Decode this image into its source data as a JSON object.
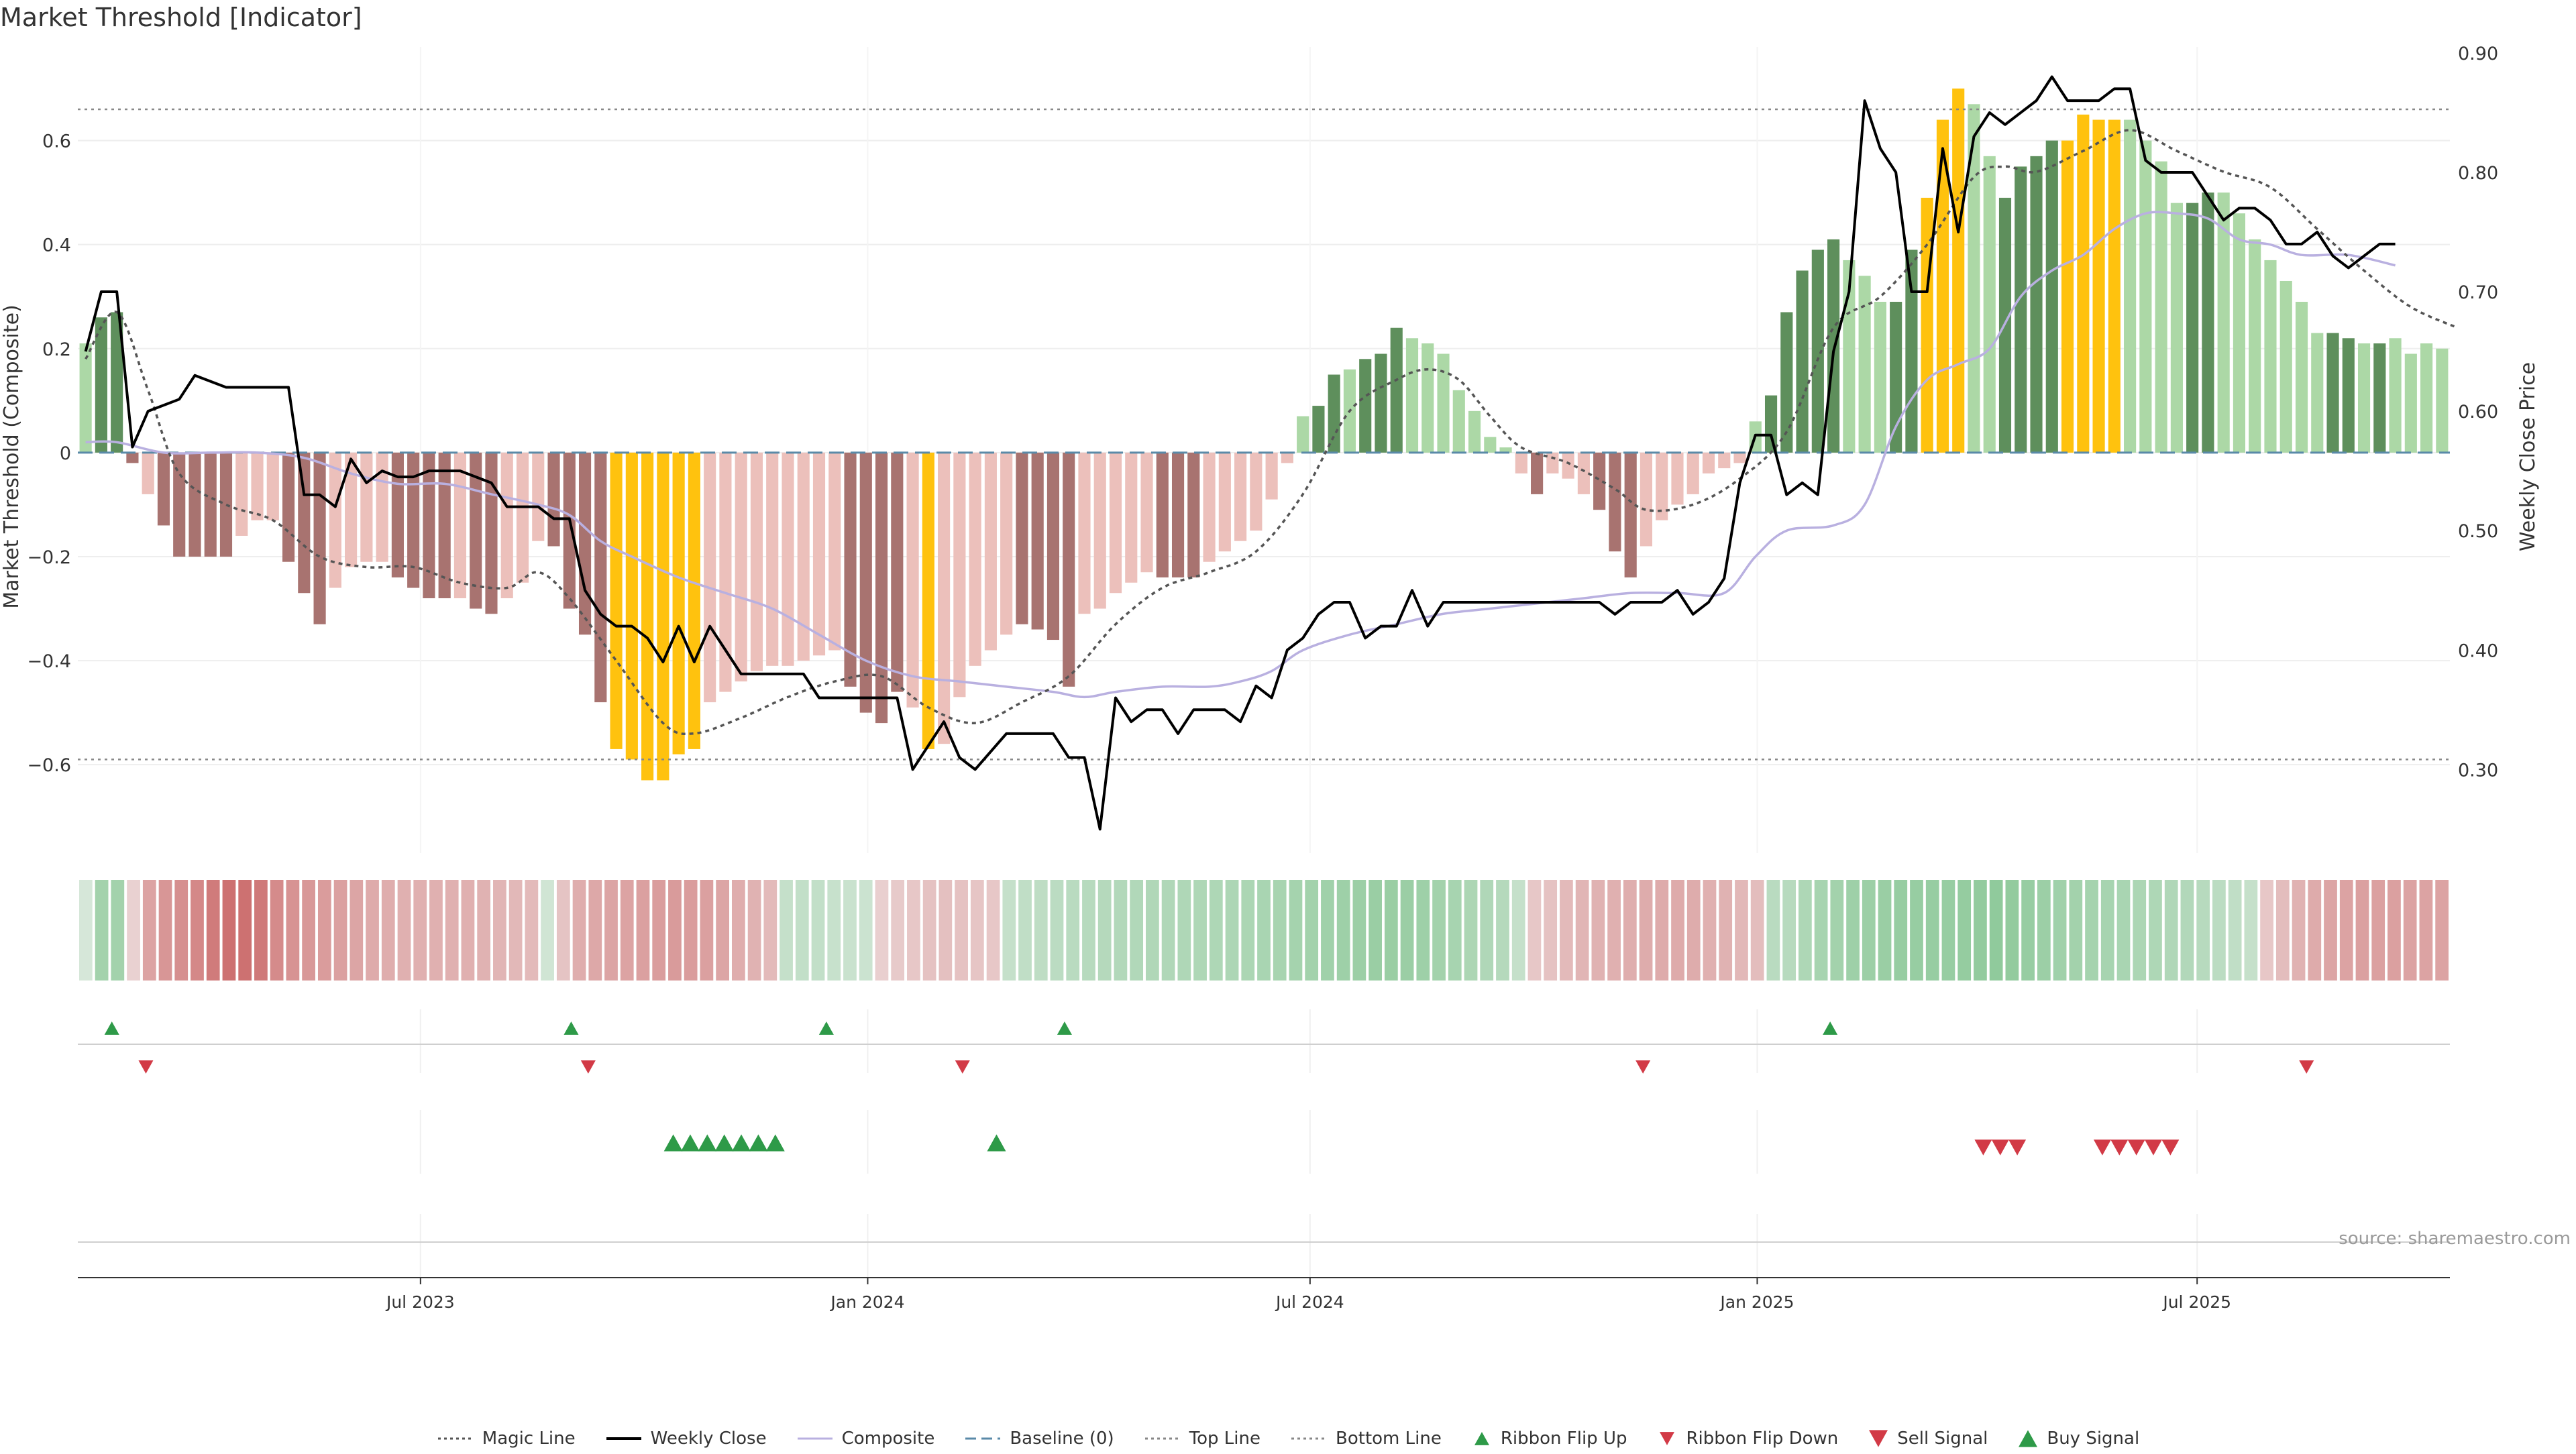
{
  "title": "Market Threshold [Indicator]",
  "source": "source: sharemaestro.com",
  "colors": {
    "bar_pos_strong": "#5e8f5c",
    "bar_pos_light": "#acd8a6",
    "bar_neg_strong": "#a87370",
    "bar_neg_light": "#ecc0bb",
    "bar_extreme": "#ffc20e",
    "magic": "#555555",
    "close": "#000000",
    "composite": "#b9b0e0",
    "baseline": "#5a8aa8",
    "guide": "#888888",
    "up_marker": "#2e9a48",
    "down_marker": "#d23a46"
  },
  "chart_data": {
    "type": "bar",
    "title": "Market Threshold [Indicator]",
    "ylabel": "Market Threshold (Composite)",
    "y2label": "Weekly Close Price",
    "ylim": [
      -0.77,
      0.78
    ],
    "y2lim": [
      0.23,
      0.905
    ],
    "yticks": [
      0.6,
      0.4,
      0.2,
      0,
      -0.2,
      -0.4,
      -0.6
    ],
    "y2ticks": [
      0.9,
      0.8,
      0.7,
      0.6,
      0.5,
      0.4,
      0.3
    ],
    "ytick_labels": [
      "0.6",
      "0.4",
      "0.2",
      "0",
      "−0.2",
      "−0.4",
      "−0.6"
    ],
    "y2tick_labels": [
      "0.90",
      "0.80",
      "0.70",
      "0.60",
      "0.50",
      "0.40",
      "0.30"
    ],
    "top_line": 0.66,
    "bottom_line": -0.59,
    "x_start": "2023-02-10",
    "x_end": "2025-10-13",
    "xticks": [
      {
        "date": "2023-07-01",
        "label": "Jul 2023"
      },
      {
        "date": "2024-01-01",
        "label": "Jan 2024"
      },
      {
        "date": "2024-07-01",
        "label": "Jul 2024"
      },
      {
        "date": "2025-01-01",
        "label": "Jan 2025"
      },
      {
        "date": "2025-07-01",
        "label": "Jul 2025"
      }
    ],
    "composite_bars": [
      0.21,
      0.26,
      0.27,
      -0.02,
      -0.08,
      -0.14,
      -0.2,
      -0.2,
      -0.2,
      -0.2,
      -0.16,
      -0.13,
      -0.13,
      -0.21,
      -0.27,
      -0.33,
      -0.26,
      -0.22,
      -0.21,
      -0.21,
      -0.24,
      -0.26,
      -0.28,
      -0.28,
      -0.28,
      -0.3,
      -0.31,
      -0.28,
      -0.25,
      -0.17,
      -0.18,
      -0.3,
      -0.35,
      -0.48,
      -0.57,
      -0.59,
      -0.63,
      -0.63,
      -0.58,
      -0.57,
      -0.48,
      -0.46,
      -0.44,
      -0.42,
      -0.41,
      -0.41,
      -0.4,
      -0.39,
      -0.38,
      -0.45,
      -0.5,
      -0.52,
      -0.46,
      -0.49,
      -0.57,
      -0.56,
      -0.47,
      -0.41,
      -0.38,
      -0.35,
      -0.33,
      -0.34,
      -0.36,
      -0.45,
      -0.31,
      -0.3,
      -0.27,
      -0.25,
      -0.23,
      -0.24,
      -0.24,
      -0.24,
      -0.21,
      -0.19,
      -0.17,
      -0.15,
      -0.09,
      -0.02,
      0.07,
      0.09,
      0.15,
      0.16,
      0.18,
      0.19,
      0.24,
      0.22,
      0.21,
      0.19,
      0.12,
      0.08,
      0.03,
      0.01,
      -0.04,
      -0.08,
      -0.04,
      -0.05,
      -0.08,
      -0.11,
      -0.19,
      -0.24,
      -0.18,
      -0.13,
      -0.1,
      -0.08,
      -0.04,
      -0.03,
      -0.02,
      0.06,
      0.11,
      0.27,
      0.35,
      0.39,
      0.41,
      0.37,
      0.34,
      0.29,
      0.29,
      0.39,
      0.49,
      0.64,
      0.7,
      0.67,
      0.57,
      0.49,
      0.55,
      0.57,
      0.6,
      0.6,
      0.65,
      0.64,
      0.64,
      0.64,
      0.6,
      0.56,
      0.48,
      0.48,
      0.5,
      0.5,
      0.46,
      0.41,
      0.37,
      0.33,
      0.29,
      0.23,
      0.23,
      0.22,
      0.21,
      0.21,
      0.22,
      0.19,
      0.21,
      0.2
    ],
    "bar_classes": [
      "L",
      "S",
      "S",
      "S",
      "N",
      "S",
      "S",
      "S",
      "S",
      "S",
      "N",
      "N",
      "N",
      "S",
      "S",
      "S",
      "N",
      "N",
      "N",
      "N",
      "S",
      "S",
      "S",
      "S",
      "N",
      "S",
      "S",
      "N",
      "N",
      "N",
      "S",
      "S",
      "S",
      "S",
      "E",
      "E",
      "E",
      "E",
      "E",
      "E",
      "N",
      "N",
      "N",
      "N",
      "N",
      "N",
      "N",
      "N",
      "N",
      "S",
      "S",
      "S",
      "S",
      "N",
      "E",
      "N",
      "N",
      "N",
      "N",
      "N",
      "S",
      "S",
      "S",
      "S",
      "N",
      "N",
      "N",
      "N",
      "N",
      "S",
      "S",
      "S",
      "N",
      "N",
      "N",
      "N",
      "N",
      "N",
      "L",
      "S",
      "S",
      "L",
      "S",
      "S",
      "S",
      "L",
      "L",
      "L",
      "L",
      "L",
      "L",
      "L",
      "N",
      "S",
      "N",
      "N",
      "N",
      "S",
      "S",
      "S",
      "N",
      "N",
      "N",
      "N",
      "N",
      "N",
      "N",
      "L",
      "S",
      "S",
      "S",
      "S",
      "S",
      "L",
      "L",
      "L",
      "S",
      "S",
      "E",
      "E",
      "E",
      "L",
      "L",
      "S",
      "S",
      "S",
      "S",
      "E",
      "E",
      "E",
      "E",
      "L",
      "L",
      "L",
      "L",
      "S",
      "S",
      "L",
      "L",
      "L",
      "L",
      "L",
      "L",
      "L",
      "S",
      "S",
      "L",
      "S",
      "L"
    ],
    "magic_line": [
      [
        0,
        0.18
      ],
      [
        2,
        0.27
      ],
      [
        4,
        0.12
      ],
      [
        6,
        -0.04
      ],
      [
        9,
        -0.1
      ],
      [
        12,
        -0.13
      ],
      [
        15,
        -0.2
      ],
      [
        18,
        -0.22
      ],
      [
        21,
        -0.22
      ],
      [
        24,
        -0.25
      ],
      [
        27,
        -0.26
      ],
      [
        29,
        -0.23
      ],
      [
        31,
        -0.28
      ],
      [
        34,
        -0.4
      ],
      [
        37,
        -0.52
      ],
      [
        39,
        -0.54
      ],
      [
        42,
        -0.51
      ],
      [
        45,
        -0.47
      ],
      [
        48,
        -0.44
      ],
      [
        51,
        -0.43
      ],
      [
        54,
        -0.49
      ],
      [
        57,
        -0.52
      ],
      [
        60,
        -0.48
      ],
      [
        63,
        -0.43
      ],
      [
        66,
        -0.33
      ],
      [
        69,
        -0.26
      ],
      [
        72,
        -0.23
      ],
      [
        75,
        -0.19
      ],
      [
        78,
        -0.08
      ],
      [
        81,
        0.08
      ],
      [
        84,
        0.14
      ],
      [
        86,
        0.16
      ],
      [
        88,
        0.14
      ],
      [
        90,
        0.07
      ],
      [
        92,
        0.01
      ],
      [
        95,
        -0.02
      ],
      [
        98,
        -0.07
      ],
      [
        100,
        -0.11
      ],
      [
        103,
        -0.1
      ],
      [
        106,
        -0.05
      ],
      [
        109,
        0.04
      ],
      [
        112,
        0.24
      ],
      [
        115,
        0.3
      ],
      [
        118,
        0.4
      ],
      [
        121,
        0.53
      ],
      [
        123,
        0.55
      ],
      [
        125,
        0.54
      ],
      [
        128,
        0.58
      ],
      [
        131,
        0.62
      ],
      [
        134,
        0.58
      ],
      [
        137,
        0.54
      ],
      [
        140,
        0.51
      ],
      [
        143,
        0.43
      ],
      [
        146,
        0.35
      ],
      [
        149,
        0.28
      ],
      [
        152,
        0.24
      ]
    ],
    "weekly_close": [
      [
        0,
        0.65
      ],
      [
        1,
        0.7
      ],
      [
        2,
        0.7
      ],
      [
        3,
        0.57
      ],
      [
        4,
        0.6
      ],
      [
        6,
        0.61
      ],
      [
        7,
        0.63
      ],
      [
        9,
        0.62
      ],
      [
        13,
        0.62
      ],
      [
        14,
        0.53
      ],
      [
        15,
        0.53
      ],
      [
        16,
        0.52
      ],
      [
        17,
        0.56
      ],
      [
        18,
        0.54
      ],
      [
        19,
        0.55
      ],
      [
        20,
        0.545
      ],
      [
        21,
        0.545
      ],
      [
        22,
        0.55
      ],
      [
        24,
        0.55
      ],
      [
        26,
        0.54
      ],
      [
        27,
        0.52
      ],
      [
        29,
        0.52
      ],
      [
        30,
        0.51
      ],
      [
        31,
        0.51
      ],
      [
        32,
        0.45
      ],
      [
        33,
        0.43
      ],
      [
        34,
        0.42
      ],
      [
        35,
        0.42
      ],
      [
        36,
        0.41
      ],
      [
        37,
        0.39
      ],
      [
        38,
        0.42
      ],
      [
        39,
        0.39
      ],
      [
        40,
        0.42
      ],
      [
        41,
        0.4
      ],
      [
        42,
        0.38
      ],
      [
        43,
        0.38
      ],
      [
        46,
        0.38
      ],
      [
        47,
        0.36
      ],
      [
        52,
        0.36
      ],
      [
        53,
        0.3
      ],
      [
        55,
        0.34
      ],
      [
        56,
        0.31
      ],
      [
        57,
        0.3
      ],
      [
        59,
        0.33
      ],
      [
        62,
        0.33
      ],
      [
        63,
        0.31
      ],
      [
        64,
        0.31
      ],
      [
        65,
        0.25
      ],
      [
        66,
        0.36
      ],
      [
        67,
        0.34
      ],
      [
        68,
        0.35
      ],
      [
        69,
        0.35
      ],
      [
        70,
        0.33
      ],
      [
        71,
        0.35
      ],
      [
        73,
        0.35
      ],
      [
        74,
        0.34
      ],
      [
        75,
        0.37
      ],
      [
        76,
        0.36
      ],
      [
        77,
        0.4
      ],
      [
        78,
        0.41
      ],
      [
        79,
        0.43
      ],
      [
        80,
        0.44
      ],
      [
        81,
        0.44
      ],
      [
        82,
        0.41
      ],
      [
        83,
        0.42
      ],
      [
        84,
        0.42
      ],
      [
        85,
        0.45
      ],
      [
        86,
        0.42
      ],
      [
        87,
        0.44
      ],
      [
        97,
        0.44
      ],
      [
        98,
        0.43
      ],
      [
        99,
        0.44
      ],
      [
        101,
        0.44
      ],
      [
        102,
        0.45
      ],
      [
        103,
        0.43
      ],
      [
        104,
        0.44
      ],
      [
        105,
        0.46
      ],
      [
        106,
        0.54
      ],
      [
        107,
        0.58
      ],
      [
        108,
        0.58
      ],
      [
        109,
        0.53
      ],
      [
        110,
        0.54
      ],
      [
        111,
        0.53
      ],
      [
        112,
        0.65
      ],
      [
        113,
        0.7
      ],
      [
        114,
        0.86
      ],
      [
        115,
        0.82
      ],
      [
        116,
        0.8
      ],
      [
        117,
        0.7
      ],
      [
        118,
        0.7
      ],
      [
        119,
        0.82
      ],
      [
        120,
        0.75
      ],
      [
        121,
        0.83
      ],
      [
        122,
        0.85
      ],
      [
        123,
        0.84
      ],
      [
        124,
        0.85
      ],
      [
        125,
        0.86
      ],
      [
        126,
        0.88
      ],
      [
        127,
        0.86
      ],
      [
        129,
        0.86
      ],
      [
        130,
        0.87
      ],
      [
        131,
        0.87
      ],
      [
        132,
        0.81
      ],
      [
        133,
        0.8
      ],
      [
        135,
        0.8
      ],
      [
        136,
        0.78
      ],
      [
        137,
        0.76
      ],
      [
        138,
        0.77
      ],
      [
        139,
        0.77
      ],
      [
        140,
        0.76
      ],
      [
        141,
        0.74
      ],
      [
        142,
        0.74
      ],
      [
        143,
        0.75
      ],
      [
        144,
        0.73
      ],
      [
        145,
        0.72
      ],
      [
        146,
        0.73
      ],
      [
        147,
        0.74
      ],
      [
        148,
        0.74
      ]
    ],
    "composite_line": [
      [
        0,
        0.02
      ],
      [
        2,
        0.02
      ],
      [
        5,
        0.0
      ],
      [
        8,
        0.0
      ],
      [
        11,
        0.0
      ],
      [
        14,
        -0.01
      ],
      [
        17,
        -0.04
      ],
      [
        20,
        -0.06
      ],
      [
        23,
        -0.06
      ],
      [
        26,
        -0.08
      ],
      [
        29,
        -0.1
      ],
      [
        31,
        -0.12
      ],
      [
        33,
        -0.17
      ],
      [
        35,
        -0.2
      ],
      [
        38,
        -0.24
      ],
      [
        41,
        -0.27
      ],
      [
        44,
        -0.3
      ],
      [
        47,
        -0.35
      ],
      [
        50,
        -0.4
      ],
      [
        53,
        -0.43
      ],
      [
        56,
        -0.44
      ],
      [
        59,
        -0.45
      ],
      [
        62,
        -0.46
      ],
      [
        64,
        -0.47
      ],
      [
        66,
        -0.46
      ],
      [
        69,
        -0.45
      ],
      [
        72,
        -0.45
      ],
      [
        74,
        -0.44
      ],
      [
        76,
        -0.42
      ],
      [
        78,
        -0.38
      ],
      [
        81,
        -0.35
      ],
      [
        84,
        -0.33
      ],
      [
        87,
        -0.31
      ],
      [
        90,
        -0.3
      ],
      [
        93,
        -0.29
      ],
      [
        96,
        -0.28
      ],
      [
        99,
        -0.27
      ],
      [
        102,
        -0.27
      ],
      [
        105,
        -0.27
      ],
      [
        107,
        -0.2
      ],
      [
        109,
        -0.15
      ],
      [
        112,
        -0.14
      ],
      [
        114,
        -0.1
      ],
      [
        116,
        0.05
      ],
      [
        118,
        0.14
      ],
      [
        120,
        0.17
      ],
      [
        122,
        0.2
      ],
      [
        124,
        0.3
      ],
      [
        126,
        0.35
      ],
      [
        128,
        0.38
      ],
      [
        130,
        0.43
      ],
      [
        132,
        0.46
      ],
      [
        134,
        0.46
      ],
      [
        136,
        0.45
      ],
      [
        138,
        0.41
      ],
      [
        140,
        0.4
      ],
      [
        142,
        0.38
      ],
      [
        145,
        0.38
      ],
      [
        148,
        0.36
      ]
    ],
    "ribbon_values": [
      0.05,
      0.5,
      0.5,
      -0.05,
      -0.4,
      -0.5,
      -0.55,
      -0.6,
      -0.7,
      -0.78,
      -0.78,
      -0.72,
      -0.58,
      -0.52,
      -0.48,
      -0.45,
      -0.42,
      -0.38,
      -0.34,
      -0.32,
      -0.3,
      -0.3,
      -0.3,
      -0.3,
      -0.3,
      -0.28,
      -0.26,
      -0.24,
      -0.22,
      0.1,
      -0.15,
      -0.32,
      -0.36,
      -0.38,
      -0.4,
      -0.42,
      -0.44,
      -0.46,
      -0.44,
      -0.42,
      -0.38,
      -0.32,
      -0.28,
      -0.22,
      0.2,
      0.22,
      0.22,
      0.18,
      0.16,
      0.14,
      -0.06,
      -0.1,
      -0.12,
      -0.16,
      -0.18,
      -0.16,
      -0.14,
      -0.12,
      0.2,
      0.24,
      0.26,
      0.28,
      0.3,
      0.32,
      0.34,
      0.36,
      0.37,
      0.38,
      0.38,
      0.39,
      0.4,
      0.4,
      0.41,
      0.42,
      0.44,
      0.46,
      0.48,
      0.5,
      0.52,
      0.54,
      0.56,
      0.58,
      0.58,
      0.57,
      0.54,
      0.5,
      0.46,
      0.42,
      0.38,
      0.34,
      0.2,
      -0.12,
      -0.16,
      -0.22,
      -0.26,
      -0.28,
      -0.3,
      -0.32,
      -0.33,
      -0.34,
      -0.34,
      -0.33,
      -0.3,
      -0.28,
      -0.24,
      -0.2,
      0.3,
      0.32,
      0.4,
      0.46,
      0.5,
      0.54,
      0.56,
      0.58,
      0.6,
      0.6,
      0.6,
      0.6,
      0.62,
      0.64,
      0.66,
      0.64,
      0.6,
      0.56,
      0.52,
      0.5,
      0.48,
      0.46,
      0.44,
      0.42,
      0.4,
      0.38,
      0.36,
      0.32,
      0.28,
      0.24,
      0.2,
      -0.12,
      -0.2,
      -0.28,
      -0.34,
      -0.38,
      -0.4,
      -0.42,
      -0.42,
      -0.42,
      -0.4,
      -0.4,
      -0.4
    ],
    "ribbon_flip_up": [
      "2023-02-24",
      "2023-09-01",
      "2023-12-15",
      "2024-03-22",
      "2025-01-31"
    ],
    "ribbon_flip_down": [
      "2023-03-10",
      "2023-09-08",
      "2024-02-09",
      "2024-11-15",
      "2025-08-15"
    ],
    "buy_signals": [
      "2023-10-13",
      "2023-10-20",
      "2023-10-27",
      "2023-11-03",
      "2023-11-10",
      "2023-11-17",
      "2023-11-24",
      "2024-02-23"
    ],
    "sell_signals": [
      "2025-04-04",
      "2025-04-11",
      "2025-04-18",
      "2025-05-23",
      "2025-05-30",
      "2025-06-06",
      "2025-06-13",
      "2025-06-20"
    ]
  },
  "legend": [
    {
      "key": "magic",
      "label": "Magic Line",
      "icon": "dotted-line-icon"
    },
    {
      "key": "close",
      "label": "Weekly Close",
      "icon": "solid-line-icon"
    },
    {
      "key": "composite",
      "label": "Composite",
      "icon": "solid-line-icon"
    },
    {
      "key": "baseline",
      "label": "Baseline (0)",
      "icon": "dashed-line-icon"
    },
    {
      "key": "top",
      "label": "Top Line",
      "icon": "dotted-line-icon"
    },
    {
      "key": "bottom",
      "label": "Bottom Line",
      "icon": "dotted-line-icon"
    },
    {
      "key": "flip_up",
      "label": "Ribbon Flip Up",
      "icon": "triangle-up-icon"
    },
    {
      "key": "flip_down",
      "label": "Ribbon Flip Down",
      "icon": "triangle-down-icon"
    },
    {
      "key": "sell",
      "label": "Sell Signal",
      "icon": "triangle-down-icon"
    },
    {
      "key": "buy",
      "label": "Buy Signal",
      "icon": "triangle-up-icon"
    }
  ]
}
